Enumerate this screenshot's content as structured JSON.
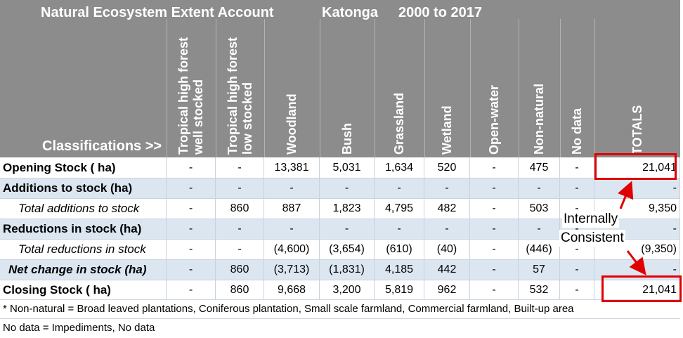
{
  "header": {
    "title": "Natural Ecosystem Extent Account",
    "region": "Katonga",
    "period": "2000 to 2017",
    "corner_label": "Classifications >>"
  },
  "columns": [
    [
      "Tropical high forest",
      "well stocked"
    ],
    [
      "Tropical high forest",
      "low stocked"
    ],
    [
      "Woodland"
    ],
    [
      "Bush"
    ],
    [
      "Grassland"
    ],
    [
      "Wetland"
    ],
    [
      "Open-water"
    ],
    [
      "Non-natural"
    ],
    [
      "No data"
    ],
    [
      "TOTALS"
    ]
  ],
  "rows": [
    {
      "label": "Opening Stock ( ha)",
      "values": [
        "-",
        "-",
        "13,381",
        "5,031",
        "1,634",
        "520",
        "-",
        "475",
        "-",
        "21,041"
      ]
    },
    {
      "label": "Additions to stock (ha)",
      "values": [
        "-",
        "-",
        "-",
        "-",
        "-",
        "-",
        "-",
        "-",
        "-",
        "-"
      ]
    },
    {
      "label": "Total additions to stock",
      "values": [
        "-",
        "860",
        "887",
        "1,823",
        "4,795",
        "482",
        "-",
        "503",
        "-",
        "9,350"
      ]
    },
    {
      "label": "Reductions in stock (ha)",
      "values": [
        "-",
        "-",
        "-",
        "-",
        "-",
        "-",
        "-",
        "-",
        "-",
        "-"
      ]
    },
    {
      "label": "Total reductions in stock",
      "values": [
        "-",
        "-",
        "(4,600)",
        "(3,654)",
        "(610)",
        "(40)",
        "-",
        "(446)",
        "-",
        "(9,350)"
      ]
    },
    {
      "label": "Net change in stock (ha)",
      "values": [
        "-",
        "860",
        "(3,713)",
        "(1,831)",
        "4,185",
        "442",
        "-",
        "57",
        "-",
        "-"
      ]
    },
    {
      "label": "Closing Stock ( ha)",
      "values": [
        "-",
        "860",
        "9,668",
        "3,200",
        "5,819",
        "962",
        "-",
        "532",
        "-",
        "21,041"
      ]
    }
  ],
  "notes": [
    "* Non-natural = Broad leaved plantations, Coniferous plantation, Small scale farmland, Commercial farmland,  Built-up area",
    "No data =  Impediments, No data"
  ],
  "annotation": {
    "line1": "Internally",
    "line2": "Consistent",
    "color": "#e00000"
  }
}
